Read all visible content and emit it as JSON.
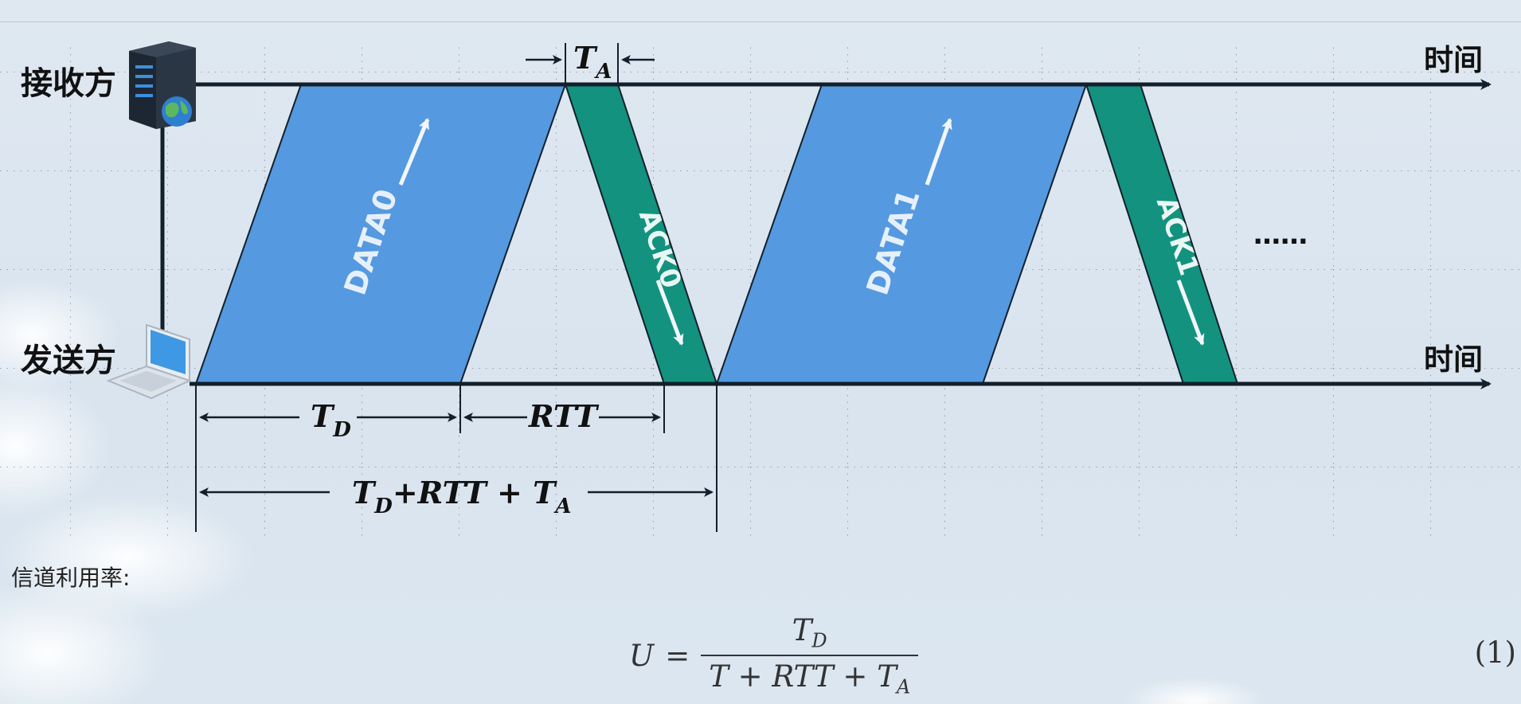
{
  "roles": {
    "receiver": "接收方",
    "sender": "发送方"
  },
  "timeline": {
    "time_label_top": "时间",
    "time_label_bottom": "时间"
  },
  "packets": {
    "data0": "DATA0",
    "ack0": "ACK0",
    "data1": "DATA1",
    "ack1": "ACK1",
    "ellipsis": "……"
  },
  "intervals": {
    "ta": {
      "main": "T",
      "sub": "A"
    },
    "td": {
      "main": "T",
      "sub": "D"
    },
    "rtt": "RTT",
    "total": {
      "t1": "T",
      "s1": "D",
      "mid": "+RTT + ",
      "t2": "T",
      "s2": "A"
    }
  },
  "caption": "信道利用率:",
  "formula": {
    "lhs": "U",
    "equals": "=",
    "numerator": {
      "main": "T",
      "sub": "D"
    },
    "denominator": {
      "prefix": "T + RTT + ",
      "main": "T",
      "sub": "A"
    },
    "number": "(1)"
  },
  "colors": {
    "data_fill": "#5599e0",
    "ack_fill": "#13927f",
    "line": "#12202c"
  },
  "icons": {
    "receiver": "server-icon",
    "sender": "laptop-icon"
  }
}
